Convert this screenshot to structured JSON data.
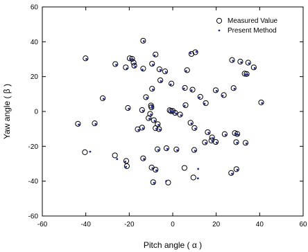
{
  "chart_data": {
    "type": "scatter",
    "xlabel": "Pitch angle ( α )",
    "ylabel": "Yaw angle ( β )",
    "xlim": [
      -60,
      60
    ],
    "ylim": [
      -60,
      60
    ],
    "xticks": [
      -60,
      -40,
      -20,
      0,
      20,
      40,
      60
    ],
    "yticks": [
      -60,
      -40,
      -20,
      0,
      20,
      40,
      60
    ],
    "legend_position": "top-right",
    "grid": false,
    "series": [
      {
        "name": "Measured Value",
        "marker": "open-circle",
        "color": "#000000",
        "points": [
          [
            -13.6,
            40.6
          ],
          [
            10.4,
            34.0
          ],
          [
            8.6,
            33.0
          ],
          [
            -7.9,
            32.7
          ],
          [
            -18.7,
            30.2
          ],
          [
            -18.0,
            28.0
          ],
          [
            -9.5,
            27.4
          ],
          [
            -17.7,
            26.3
          ],
          [
            -21.6,
            25.3
          ],
          [
            -13.6,
            24.6
          ],
          [
            -3.5,
            23.0
          ],
          [
            6.6,
            23.7
          ],
          [
            -5.7,
            17.9
          ],
          [
            -0.6,
            16.0
          ],
          [
            5.6,
            13.5
          ],
          [
            -9.5,
            13.0
          ],
          [
            9.1,
            12.5
          ],
          [
            12.7,
            8.4
          ],
          [
            -12.3,
            8.2
          ],
          [
            23.5,
            9.4
          ],
          [
            -10.0,
            3.4
          ],
          [
            -20.6,
            2.0
          ],
          [
            5.9,
            3.6
          ],
          [
            15.2,
            4.8
          ],
          [
            -9.8,
            2.4
          ],
          [
            -14.1,
            0.8
          ],
          [
            -10.4,
            -1.4
          ],
          [
            -11.1,
            -3.8
          ],
          [
            -8.7,
            -5.0
          ],
          [
            -6.9,
            -7.3
          ],
          [
            0.0,
            0.3
          ],
          [
            -1.4,
            0.7
          ],
          [
            1.1,
            -0.8
          ],
          [
            -0.8,
            0.2
          ],
          [
            3.4,
            -1.8
          ],
          [
            -7.9,
            -9.6
          ],
          [
            -6.3,
            -10.1
          ],
          [
            -16.1,
            -10.2
          ],
          [
            -14.1,
            -9.3
          ],
          [
            10.0,
            -9.5
          ],
          [
            8.2,
            -6.5
          ],
          [
            16.1,
            -11.9
          ],
          [
            18.1,
            -14.9
          ],
          [
            23.9,
            -13.0
          ],
          [
            17.8,
            -16.7
          ],
          [
            14.8,
            -17.7
          ],
          [
            19.8,
            -17.5
          ],
          [
            28.6,
            -12.4
          ],
          [
            29.2,
            -17.6
          ],
          [
            1.7,
            -21.8
          ],
          [
            -7.0,
            -21.7
          ],
          [
            -2.9,
            -21.1
          ],
          [
            9.9,
            -22.1
          ],
          [
            -26.6,
            -25.2
          ],
          [
            -21.4,
            -28.4
          ],
          [
            -13.6,
            -26.9
          ],
          [
            -21.1,
            -31.4
          ],
          [
            29.3,
            -33.1
          ],
          [
            26.9,
            -35.3
          ],
          [
            9.5,
            -37.9
          ],
          [
            -2.1,
            -40.8
          ],
          [
            -9.0,
            -40.6
          ],
          [
            -9.7,
            -32.2
          ],
          [
            -7.9,
            -33.4
          ],
          [
            5.4,
            -32.4
          ],
          [
            -40.4,
            -23.4
          ],
          [
            -43.6,
            -7.1
          ],
          [
            -35.9,
            -6.8
          ],
          [
            -32.2,
            7.6
          ],
          [
            -26.4,
            27.2
          ],
          [
            -19.8,
            30.5
          ],
          [
            -6.1,
            24.2
          ],
          [
            31.1,
            28.6
          ],
          [
            34.7,
            28.0
          ],
          [
            33.1,
            21.7
          ],
          [
            34.0,
            21.5
          ],
          [
            40.7,
            5.2
          ],
          [
            27.3,
            29.5
          ],
          [
            37.3,
            25.3
          ],
          [
            28.0,
            13.4
          ],
          [
            -40.1,
            30.5
          ],
          [
            29.7,
            -12.9
          ],
          [
            33.5,
            -18.0
          ],
          [
            19.8,
            12.2
          ]
        ]
      },
      {
        "name": "Present Method",
        "marker": "dot",
        "color": "#1f2a9c",
        "points": [
          [
            -13.3,
            40.3
          ],
          [
            10.9,
            34.2
          ],
          [
            8.2,
            33.4
          ],
          [
            -8.3,
            32.1
          ],
          [
            -18.2,
            29.8
          ],
          [
            -17.6,
            27.4
          ],
          [
            -9.1,
            26.8
          ],
          [
            -17.3,
            25.6
          ],
          [
            -21.1,
            24.7
          ],
          [
            -13.9,
            24.0
          ],
          [
            -3.1,
            22.6
          ],
          [
            6.2,
            23.2
          ],
          [
            -5.4,
            17.4
          ],
          [
            -0.9,
            15.5
          ],
          [
            5.2,
            13.1
          ],
          [
            -9.1,
            12.6
          ],
          [
            8.7,
            12.1
          ],
          [
            12.3,
            8.0
          ],
          [
            -11.9,
            7.8
          ],
          [
            23.0,
            9.0
          ],
          [
            -9.6,
            3.0
          ],
          [
            -20.2,
            1.6
          ],
          [
            5.5,
            3.2
          ],
          [
            14.7,
            4.4
          ],
          [
            -9.4,
            2.0
          ],
          [
            -13.7,
            0.4
          ],
          [
            -10.0,
            -1.8
          ],
          [
            -10.7,
            -4.2
          ],
          [
            -8.3,
            -5.4
          ],
          [
            -6.5,
            -7.7
          ],
          [
            0.4,
            -0.1
          ],
          [
            -1.0,
            0.3
          ],
          [
            1.5,
            -1.2
          ],
          [
            -0.4,
            -0.2
          ],
          [
            3.8,
            -2.2
          ],
          [
            -7.5,
            -10.0
          ],
          [
            -5.9,
            -10.5
          ],
          [
            -15.7,
            -10.6
          ],
          [
            -13.7,
            -9.7
          ],
          [
            10.4,
            -9.9
          ],
          [
            8.6,
            -6.9
          ],
          [
            16.5,
            -12.3
          ],
          [
            18.5,
            -15.3
          ],
          [
            24.3,
            -13.4
          ],
          [
            18.2,
            -17.1
          ],
          [
            15.2,
            -18.1
          ],
          [
            20.2,
            -17.9
          ],
          [
            29.0,
            -12.8
          ],
          [
            29.6,
            -18.0
          ],
          [
            2.1,
            -22.2
          ],
          [
            -6.6,
            -22.1
          ],
          [
            -2.5,
            -21.5
          ],
          [
            10.3,
            -22.5
          ],
          [
            -25.6,
            -27.3
          ],
          [
            -21.8,
            -28.8
          ],
          [
            -13.2,
            -27.3
          ],
          [
            -21.5,
            -31.8
          ],
          [
            29.7,
            -33.5
          ],
          [
            27.3,
            -35.7
          ],
          [
            11.6,
            -38.4
          ],
          [
            -3.0,
            -40.0
          ],
          [
            -8.6,
            -41.0
          ],
          [
            -9.3,
            -32.6
          ],
          [
            -7.5,
            -33.8
          ],
          [
            11.7,
            -33.0
          ],
          [
            -38.0,
            -23.1
          ],
          [
            -43.2,
            -7.5
          ],
          [
            -35.5,
            -7.2
          ],
          [
            -31.8,
            7.2
          ],
          [
            -26.0,
            26.8
          ],
          [
            -19.4,
            30.1
          ],
          [
            -5.7,
            23.8
          ],
          [
            31.5,
            28.2
          ],
          [
            35.1,
            27.6
          ],
          [
            33.5,
            21.3
          ],
          [
            34.4,
            21.1
          ],
          [
            41.1,
            4.8
          ],
          [
            27.7,
            29.1
          ],
          [
            37.7,
            24.9
          ],
          [
            28.4,
            13.0
          ],
          [
            -39.7,
            30.1
          ],
          [
            30.1,
            -13.3
          ],
          [
            33.9,
            -18.4
          ],
          [
            20.2,
            11.8
          ]
        ]
      }
    ]
  }
}
